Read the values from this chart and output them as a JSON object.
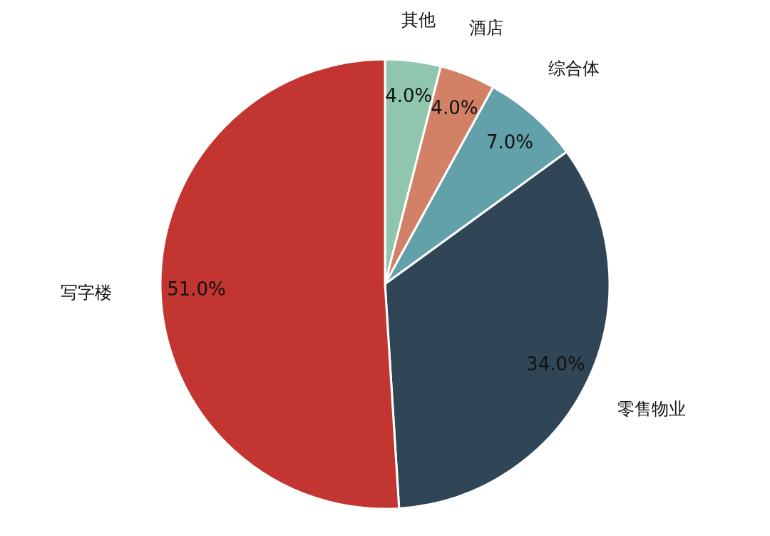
{
  "chart_data": {
    "type": "pie",
    "categories": [
      "其他",
      "酒店",
      "综合体",
      "零售物业",
      "写字楼"
    ],
    "values": [
      4.0,
      4.0,
      7.0,
      34.0,
      51.0
    ],
    "value_labels": [
      "4.0%",
      "4.0%",
      "7.0%",
      "34.0%",
      "51.0%"
    ],
    "colors": [
      "#8fc6ad",
      "#d38166",
      "#62a0aa",
      "#304656",
      "#c23531"
    ]
  }
}
